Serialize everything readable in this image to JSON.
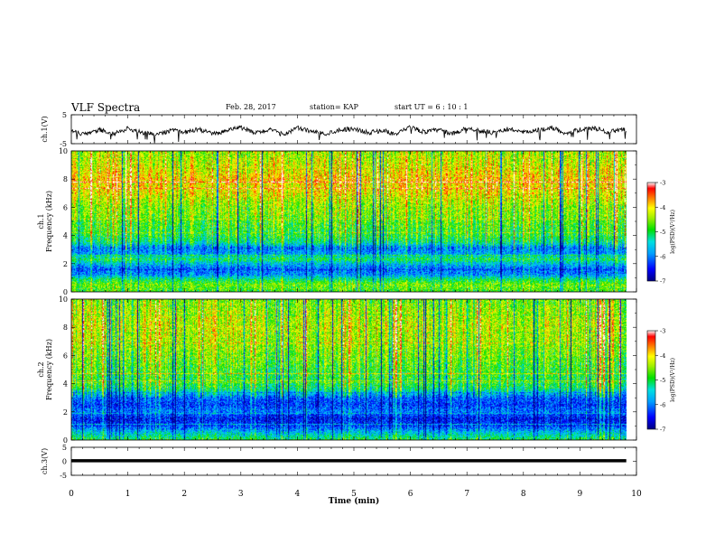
{
  "header": {
    "title": "VLF Spectra",
    "date": "Feb. 28, 2017",
    "station": "station= KAP",
    "start_ut": "start UT =  6 : 10 : 1"
  },
  "colors": {
    "cmap": [
      "#000080",
      "#0000ff",
      "#00a0ff",
      "#00e0e0",
      "#00e000",
      "#a0f000",
      "#ffff00",
      "#ff8000",
      "#ff0000",
      "#ffffff"
    ],
    "trace": "#000000"
  },
  "chart_data": [
    {
      "type": "line",
      "name": "ch1",
      "ylabel": "ch.1(V)",
      "ylim": [
        -5,
        5
      ],
      "y_ticks": [
        "5",
        "-5"
      ],
      "xlim": [
        0,
        10
      ],
      "description_points": [
        [
          0,
          -0.8
        ],
        [
          0.25,
          -1.8
        ],
        [
          0.5,
          -0.2
        ],
        [
          0.75,
          -1.5
        ],
        [
          1.0,
          0.2
        ],
        [
          1.25,
          -1.2
        ],
        [
          1.5,
          -2.0
        ],
        [
          1.75,
          -0.4
        ],
        [
          2.0,
          -1.0
        ],
        [
          2.25,
          0.0
        ],
        [
          2.5,
          -1.6
        ],
        [
          2.75,
          -0.6
        ],
        [
          3.0,
          0.6
        ],
        [
          3.25,
          -1.4
        ],
        [
          3.5,
          -0.2
        ],
        [
          3.75,
          -1.8
        ],
        [
          4.0,
          0.4
        ],
        [
          4.25,
          -0.8
        ],
        [
          4.5,
          -1.6
        ],
        [
          4.75,
          -0.2
        ],
        [
          5.0,
          0.2
        ],
        [
          5.25,
          -1.2
        ],
        [
          5.5,
          -0.4
        ],
        [
          5.75,
          -1.8
        ],
        [
          6.0,
          0.8
        ],
        [
          6.25,
          -1.0
        ],
        [
          6.5,
          -0.2
        ],
        [
          6.75,
          -1.6
        ],
        [
          7.0,
          0.4
        ],
        [
          7.25,
          -0.6
        ],
        [
          7.5,
          -1.4
        ],
        [
          7.75,
          0.2
        ],
        [
          8.0,
          -1.2
        ],
        [
          8.25,
          -0.4
        ],
        [
          8.5,
          0.6
        ],
        [
          8.75,
          -1.4
        ],
        [
          9.0,
          -0.2
        ],
        [
          9.25,
          0.4
        ],
        [
          9.5,
          -1.0
        ],
        [
          9.75,
          0.0
        ],
        [
          9.82,
          -0.4
        ]
      ]
    },
    {
      "type": "heatmap",
      "name": "ch1-spectrogram",
      "ylabel": "ch.1\nFrequency (kHz)",
      "ylim": [
        0,
        10
      ],
      "y_ticks": [
        "0",
        "2",
        "4",
        "6",
        "8",
        "10"
      ],
      "xlim": [
        0,
        10
      ],
      "colorbar": {
        "label": "log(PSD)(V²/Hz)",
        "ticks": [
          "-3",
          "-4",
          "-5",
          "-6",
          "-7"
        ],
        "range": [
          -7,
          -3
        ]
      },
      "profile_khz_level": [
        [
          0.0,
          -4.8
        ],
        [
          0.5,
          -4.6
        ],
        [
          0.9,
          -5.2
        ],
        [
          1.2,
          -5.9
        ],
        [
          1.6,
          -6.1
        ],
        [
          2.0,
          -5.6
        ],
        [
          2.3,
          -5.0
        ],
        [
          2.7,
          -5.8
        ],
        [
          3.1,
          -6.0
        ],
        [
          3.5,
          -5.2
        ],
        [
          4.0,
          -4.9
        ],
        [
          5.0,
          -4.7
        ],
        [
          5.5,
          -4.5
        ],
        [
          6.0,
          -4.5
        ],
        [
          7.0,
          -4.1
        ],
        [
          8.0,
          -3.9
        ],
        [
          9.0,
          -4.2
        ],
        [
          10.0,
          -4.4
        ]
      ]
    },
    {
      "type": "heatmap",
      "name": "ch2-spectrogram",
      "ylabel": "ch.2\nFrequency (kHz)",
      "ylim": [
        0,
        10
      ],
      "y_ticks": [
        "0",
        "2",
        "4",
        "6",
        "8",
        "10"
      ],
      "xlim": [
        0,
        10
      ],
      "colorbar": {
        "label": "log(PSD)(V²/Hz)",
        "ticks": [
          "-3",
          "-4",
          "-5",
          "-6",
          "-7"
        ],
        "range": [
          -7,
          -3
        ]
      },
      "profile_khz_level": [
        [
          0.0,
          -5.0
        ],
        [
          0.5,
          -5.6
        ],
        [
          1.0,
          -6.3
        ],
        [
          1.5,
          -6.5
        ],
        [
          2.0,
          -6.0
        ],
        [
          2.5,
          -6.3
        ],
        [
          3.0,
          -6.1
        ],
        [
          3.5,
          -5.3
        ],
        [
          3.8,
          -5.0
        ],
        [
          4.5,
          -4.9
        ],
        [
          5.0,
          -4.8
        ],
        [
          6.0,
          -4.6
        ],
        [
          7.0,
          -4.4
        ],
        [
          8.0,
          -4.3
        ],
        [
          9.0,
          -4.4
        ],
        [
          10.0,
          -4.6
        ]
      ]
    },
    {
      "type": "line",
      "name": "ch3",
      "ylabel": "ch.3(V)",
      "ylim": [
        -5,
        5
      ],
      "y_ticks": [
        "5",
        "0",
        "-5"
      ],
      "xlim": [
        0,
        10
      ],
      "x_ticks": [
        "0",
        "1",
        "2",
        "3",
        "4",
        "5",
        "6",
        "7",
        "8",
        "9",
        "10"
      ],
      "xlabel": "Time  (min)",
      "description_points": [
        [
          0,
          0.2
        ],
        [
          9.82,
          0.2
        ]
      ]
    }
  ]
}
